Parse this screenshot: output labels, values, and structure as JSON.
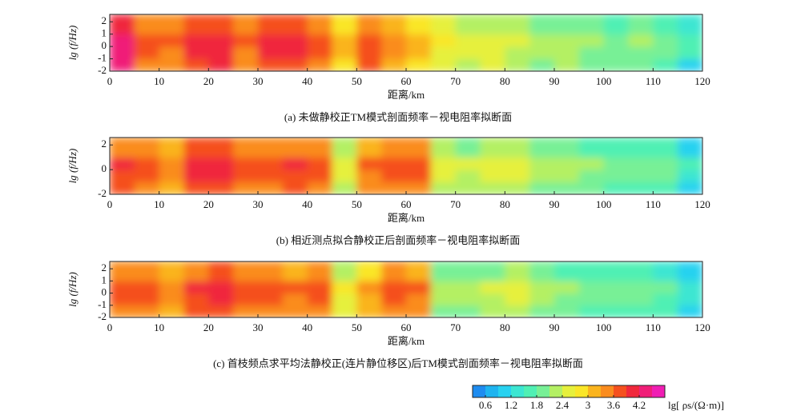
{
  "chart_data": [
    {
      "type": "heatmap",
      "caption": "(a) 未做静校正TM模式剖面频率－视电阻率拟断面",
      "xlabel": "距离/km",
      "ylabel": "lg (f/Hz)",
      "xlim": [
        0,
        120
      ],
      "ylim": [
        -2,
        2.6
      ],
      "xticks": [
        0,
        10,
        20,
        30,
        40,
        50,
        60,
        70,
        80,
        90,
        100,
        110,
        120
      ],
      "yticks": [
        -2,
        -1,
        0,
        1,
        2
      ],
      "x_bins": [
        0,
        5,
        10,
        15,
        20,
        25,
        30,
        35,
        40,
        45,
        50,
        55,
        60,
        65,
        70,
        75,
        80,
        85,
        90,
        95,
        100,
        105,
        110,
        115,
        120
      ],
      "y_bins": [
        -2,
        -1,
        0,
        1,
        2.6
      ],
      "values": [
        [
          4.2,
          3.5,
          3.4,
          3.8,
          3.9,
          3.4,
          3.8,
          3.8,
          3.5,
          2.9,
          3.6,
          3.2,
          2.9,
          2.5,
          2.3,
          2.4,
          2.2,
          2.0,
          2.1,
          1.9,
          1.8,
          1.9,
          1.6,
          1.2
        ],
        [
          4.3,
          3.6,
          3.5,
          3.9,
          4.0,
          3.5,
          3.9,
          3.9,
          3.6,
          3.0,
          3.7,
          3.3,
          3.0,
          2.6,
          2.4,
          2.5,
          2.3,
          2.1,
          2.2,
          2.0,
          1.9,
          2.0,
          1.8,
          1.5
        ],
        [
          4.4,
          3.7,
          3.6,
          4.0,
          4.1,
          3.6,
          4.0,
          4.0,
          3.7,
          3.1,
          3.8,
          3.4,
          3.1,
          2.7,
          2.5,
          2.6,
          2.4,
          2.2,
          2.3,
          2.1,
          2.0,
          2.1,
          1.9,
          1.6
        ],
        [
          4.1,
          3.4,
          3.3,
          3.7,
          3.8,
          3.3,
          3.7,
          3.7,
          3.4,
          2.8,
          3.5,
          3.1,
          2.8,
          2.4,
          2.2,
          2.3,
          2.1,
          1.9,
          2.0,
          1.8,
          1.7,
          1.8,
          1.6,
          1.4
        ]
      ]
    },
    {
      "type": "heatmap",
      "caption": "(b) 相近测点拟合静校正后剖面频率－视电阻率拟断面",
      "xlabel": "距离/km",
      "ylabel": "lg (f/Hz)",
      "xlim": [
        0,
        120
      ],
      "ylim": [
        -2,
        2.6
      ],
      "xticks": [
        0,
        10,
        20,
        30,
        40,
        50,
        60,
        70,
        80,
        90,
        100,
        110,
        120
      ],
      "yticks": [
        -2,
        0,
        2
      ],
      "x_bins": [
        0,
        5,
        10,
        15,
        20,
        25,
        30,
        35,
        40,
        45,
        50,
        55,
        60,
        65,
        70,
        75,
        80,
        85,
        90,
        95,
        100,
        105,
        110,
        115,
        120
      ],
      "y_bins": [
        -2,
        -1,
        0,
        1,
        2.6
      ],
      "values": [
        [
          3.6,
          3.5,
          3.2,
          3.7,
          3.7,
          3.4,
          3.4,
          3.6,
          3.4,
          2.2,
          3.3,
          3.5,
          3.4,
          2.2,
          2.1,
          2.2,
          2.3,
          2.0,
          1.9,
          1.8,
          1.7,
          1.7,
          1.6,
          1.2
        ],
        [
          3.8,
          3.7,
          3.4,
          3.9,
          3.9,
          3.6,
          3.6,
          3.8,
          3.6,
          2.4,
          3.5,
          3.7,
          3.6,
          2.4,
          2.3,
          2.4,
          2.5,
          2.2,
          2.1,
          2.0,
          1.9,
          1.9,
          1.8,
          1.4
        ],
        [
          3.9,
          3.8,
          3.5,
          4.0,
          4.0,
          3.7,
          3.7,
          3.9,
          3.7,
          2.5,
          3.6,
          3.8,
          3.7,
          2.5,
          2.4,
          2.5,
          2.6,
          2.3,
          2.2,
          2.1,
          2.0,
          2.0,
          1.9,
          1.5
        ],
        [
          3.5,
          3.4,
          3.1,
          3.6,
          3.6,
          3.3,
          3.3,
          3.5,
          3.3,
          2.1,
          3.2,
          3.4,
          3.3,
          2.1,
          2.0,
          2.1,
          2.2,
          1.9,
          1.8,
          1.7,
          1.6,
          1.6,
          1.5,
          1.1
        ]
      ]
    },
    {
      "type": "heatmap",
      "caption": "(c) 首枝频点求平均法静校正(连片静位移区)后TM模式剖面频率－视电阻率拟断面",
      "xlabel": "距离/km",
      "ylabel": "lg (f/Hz)",
      "xlim": [
        0,
        120
      ],
      "ylim": [
        -2,
        2.6
      ],
      "xticks": [
        0,
        10,
        20,
        30,
        40,
        50,
        60,
        70,
        80,
        90,
        100,
        110,
        120
      ],
      "yticks": [
        -2,
        -1,
        0,
        1,
        2
      ],
      "x_bins": [
        0,
        5,
        10,
        15,
        20,
        25,
        30,
        35,
        40,
        45,
        50,
        55,
        60,
        65,
        70,
        75,
        80,
        85,
        90,
        95,
        100,
        105,
        110,
        115,
        120
      ],
      "y_bins": [
        -2,
        -1,
        0,
        1,
        2.6
      ],
      "values": [
        [
          3.5,
          3.4,
          3.2,
          3.6,
          3.7,
          3.4,
          3.5,
          3.3,
          3.4,
          2.4,
          3.0,
          3.4,
          3.3,
          2.0,
          1.9,
          2.1,
          2.2,
          1.9,
          1.8,
          1.7,
          1.7,
          1.6,
          1.5,
          1.1
        ],
        [
          3.7,
          3.6,
          3.4,
          3.8,
          3.9,
          3.6,
          3.7,
          3.5,
          3.6,
          2.6,
          3.2,
          3.6,
          3.5,
          2.2,
          2.1,
          2.3,
          2.4,
          2.1,
          2.0,
          1.9,
          1.9,
          1.8,
          1.7,
          1.3
        ],
        [
          3.8,
          3.7,
          3.5,
          3.9,
          4.0,
          3.7,
          3.8,
          3.6,
          3.7,
          2.7,
          3.3,
          3.7,
          3.6,
          2.3,
          2.2,
          2.4,
          2.5,
          2.2,
          2.1,
          2.0,
          2.0,
          1.9,
          1.8,
          1.4
        ],
        [
          3.4,
          3.3,
          3.1,
          3.5,
          3.6,
          3.3,
          3.4,
          3.2,
          3.3,
          2.3,
          2.9,
          3.3,
          3.2,
          1.9,
          1.8,
          2.0,
          2.1,
          1.8,
          1.7,
          1.6,
          1.6,
          1.5,
          1.4,
          1.0
        ]
      ]
    }
  ],
  "colorbar": {
    "label": "lg[ ρs/(Ω·m)]",
    "lim": [
      0.3,
      4.8
    ],
    "ticks": [
      0.6,
      1.2,
      1.8,
      2.4,
      3,
      3.6,
      4.2
    ],
    "colors": [
      "#1e8cf0",
      "#1eb4f0",
      "#28d2f0",
      "#3ce6d2",
      "#50f0b4",
      "#78f096",
      "#b4f064",
      "#e6f03c",
      "#fae628",
      "#fab41e",
      "#fa8c1e",
      "#f5501e",
      "#f0283c",
      "#f01e78",
      "#f01eb4"
    ]
  }
}
